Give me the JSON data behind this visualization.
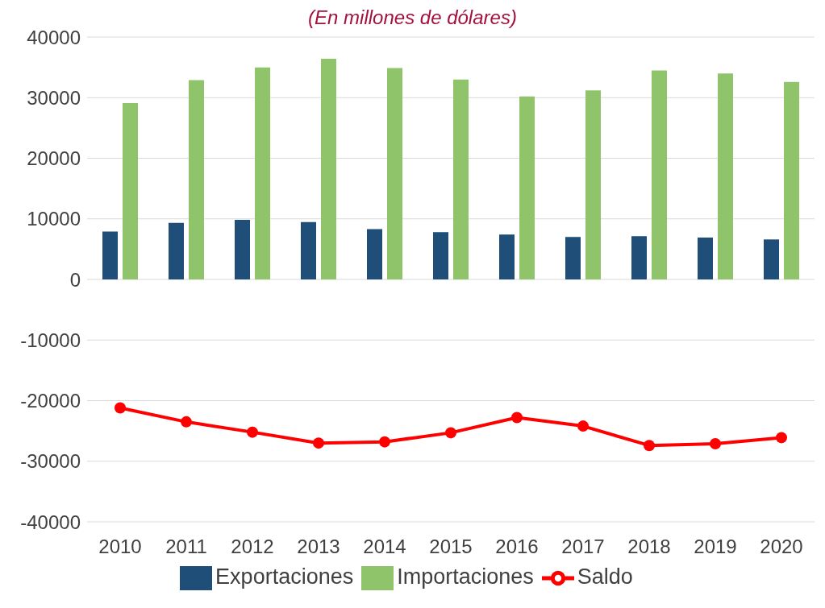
{
  "chart_data": {
    "type": "bar",
    "title": "(En millones de dólares)",
    "categories": [
      "2010",
      "2011",
      "2012",
      "2013",
      "2014",
      "2015",
      "2016",
      "2017",
      "2018",
      "2019",
      "2020"
    ],
    "series": [
      {
        "name": "Exportaciones",
        "color": "#1f4e79",
        "values": [
          7900,
          9350,
          9850,
          9480,
          8300,
          7800,
          7400,
          7000,
          7150,
          6900,
          6600
        ]
      },
      {
        "name": "Importaciones",
        "color": "#8fc46b",
        "values": [
          29100,
          32900,
          35000,
          36400,
          34900,
          33000,
          30200,
          31200,
          34500,
          34000,
          32600
        ]
      },
      {
        "name": "Saldo",
        "type": "line",
        "color": "#ff0000",
        "values": [
          -21200,
          -23500,
          -25200,
          -27000,
          -26800,
          -25300,
          -22800,
          -24200,
          -27400,
          -27100,
          -26100
        ]
      }
    ],
    "ylim": [
      -40000,
      40000
    ],
    "yticks": [
      -40000,
      -30000,
      -20000,
      -10000,
      0,
      10000,
      20000,
      30000,
      40000
    ],
    "grid": "y",
    "legend": "bottom",
    "marker": "circle",
    "line_style": "solid"
  }
}
